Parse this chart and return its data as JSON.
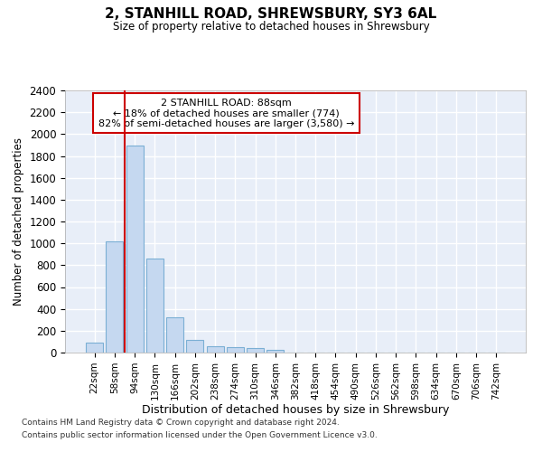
{
  "title": "2, STANHILL ROAD, SHREWSBURY, SY3 6AL",
  "subtitle": "Size of property relative to detached houses in Shrewsbury",
  "xlabel": "Distribution of detached houses by size in Shrewsbury",
  "ylabel": "Number of detached properties",
  "bar_labels": [
    "22sqm",
    "58sqm",
    "94sqm",
    "130sqm",
    "166sqm",
    "202sqm",
    "238sqm",
    "274sqm",
    "310sqm",
    "346sqm",
    "382sqm",
    "418sqm",
    "454sqm",
    "490sqm",
    "526sqm",
    "562sqm",
    "598sqm",
    "634sqm",
    "670sqm",
    "706sqm",
    "742sqm"
  ],
  "bar_values": [
    90,
    1020,
    1895,
    860,
    320,
    120,
    60,
    52,
    38,
    25,
    0,
    0,
    0,
    0,
    0,
    0,
    0,
    0,
    0,
    0,
    0
  ],
  "bar_color": "#c5d8f0",
  "bar_edge_color": "#7bafd4",
  "vline_color": "#cc0000",
  "annotation_text": "2 STANHILL ROAD: 88sqm\n← 18% of detached houses are smaller (774)\n82% of semi-detached houses are larger (3,580) →",
  "annotation_box_color": "#cc0000",
  "ylim": [
    0,
    2400
  ],
  "yticks": [
    0,
    200,
    400,
    600,
    800,
    1000,
    1200,
    1400,
    1600,
    1800,
    2000,
    2200,
    2400
  ],
  "footer1": "Contains HM Land Registry data © Crown copyright and database right 2024.",
  "footer2": "Contains public sector information licensed under the Open Government Licence v3.0.",
  "background_color": "#ffffff",
  "plot_bg_color": "#e8eef8",
  "grid_color": "#ffffff"
}
